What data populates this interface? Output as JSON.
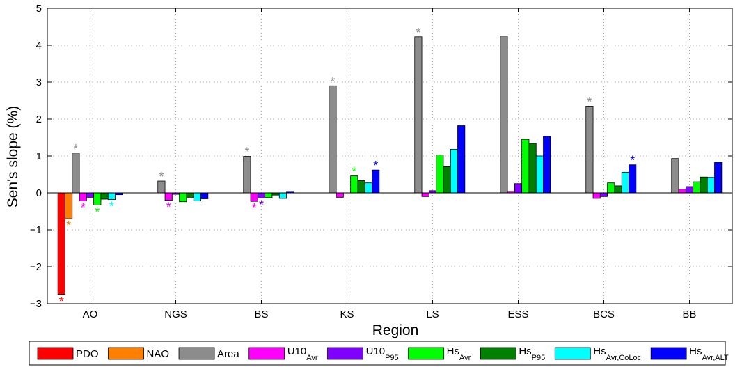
{
  "chart_data": {
    "type": "bar",
    "xlabel": "Region",
    "ylabel": "Sen's slope (%)",
    "ylim": [
      -3,
      5
    ],
    "yticks": [
      -3,
      -2,
      -1,
      0,
      1,
      2,
      3,
      4,
      5
    ],
    "grid": true,
    "legend_placement": "bottom",
    "categories": [
      "AO",
      "NGS",
      "BS",
      "KS",
      "LS",
      "ESS",
      "BCS",
      "BB"
    ],
    "series": [
      {
        "name": "PDO",
        "label_main": "PDO",
        "label_sub": "",
        "color": "#ff0000",
        "values": [
          -2.75,
          null,
          null,
          null,
          null,
          null,
          null,
          null
        ],
        "significant": [
          true,
          false,
          false,
          false,
          false,
          false,
          false,
          false
        ]
      },
      {
        "name": "NAO",
        "label_main": "NAO",
        "label_sub": "",
        "color": "#ff8000",
        "values": [
          -0.7,
          null,
          null,
          null,
          null,
          null,
          null,
          null
        ],
        "significant": [
          true,
          false,
          false,
          false,
          false,
          false,
          false,
          false
        ]
      },
      {
        "name": "Area",
        "label_main": "Area",
        "label_sub": "",
        "color": "#8c8c8c",
        "values": [
          1.08,
          0.32,
          0.99,
          2.9,
          4.23,
          4.25,
          2.35,
          0.93
        ],
        "significant": [
          true,
          true,
          true,
          true,
          true,
          false,
          true,
          false
        ]
      },
      {
        "name": "U10Avr",
        "label_main": "U10",
        "label_sub": "Avr",
        "color": "#ff00ff",
        "values": [
          -0.22,
          -0.2,
          -0.23,
          -0.12,
          -0.1,
          0.04,
          -0.15,
          0.1
        ],
        "significant": [
          true,
          true,
          true,
          false,
          false,
          false,
          false,
          false
        ]
      },
      {
        "name": "U10P95",
        "label_main": "U10",
        "label_sub": "P95",
        "color": "#8000ff",
        "values": [
          -0.12,
          -0.04,
          -0.14,
          null,
          0.06,
          0.25,
          -0.1,
          0.17
        ],
        "significant": [
          false,
          false,
          true,
          false,
          false,
          false,
          false,
          false
        ]
      },
      {
        "name": "HsAvr",
        "label_main": "Hs",
        "label_sub": "Avr",
        "color": "#00ff00",
        "values": [
          -0.33,
          -0.24,
          -0.13,
          0.46,
          1.03,
          1.45,
          0.27,
          0.3
        ],
        "significant": [
          true,
          false,
          false,
          true,
          false,
          false,
          false,
          false
        ]
      },
      {
        "name": "HsP95",
        "label_main": "Hs",
        "label_sub": "P95",
        "color": "#008000",
        "values": [
          -0.17,
          -0.12,
          -0.06,
          0.33,
          0.71,
          1.34,
          0.19,
          0.43
        ],
        "significant": [
          false,
          false,
          false,
          false,
          false,
          false,
          false,
          false
        ]
      },
      {
        "name": "HsAvr,CoLoc",
        "label_main": "Hs",
        "label_sub": "Avr,CoLoc",
        "color": "#00ffff",
        "values": [
          -0.18,
          -0.22,
          -0.15,
          0.27,
          1.18,
          1.0,
          0.56,
          0.42
        ],
        "significant": [
          true,
          false,
          false,
          false,
          false,
          false,
          false,
          false
        ]
      },
      {
        "name": "HsAvr,ALT",
        "label_main": "Hs",
        "label_sub": "Avr,ALT",
        "color": "#0000ff",
        "values": [
          -0.05,
          -0.16,
          0.04,
          0.62,
          1.82,
          1.53,
          0.76,
          0.83
        ],
        "significant": [
          false,
          false,
          false,
          true,
          false,
          false,
          true,
          false
        ]
      }
    ]
  }
}
